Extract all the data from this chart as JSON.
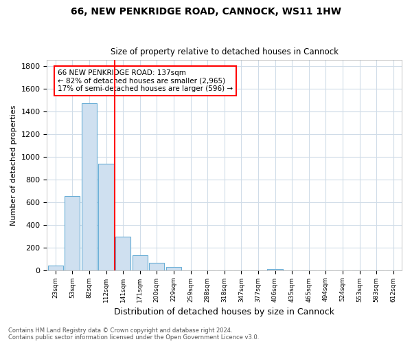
{
  "title1": "66, NEW PENKRIDGE ROAD, CANNOCK, WS11 1HW",
  "title2": "Size of property relative to detached houses in Cannock",
  "xlabel": "Distribution of detached houses by size in Cannock",
  "ylabel": "Number of detached properties",
  "bins": [
    "23sqm",
    "53sqm",
    "82sqm",
    "112sqm",
    "141sqm",
    "171sqm",
    "200sqm",
    "229sqm",
    "259sqm",
    "288sqm",
    "318sqm",
    "347sqm",
    "377sqm",
    "406sqm",
    "435sqm",
    "465sqm",
    "494sqm",
    "524sqm",
    "553sqm",
    "583sqm",
    "612sqm"
  ],
  "values": [
    40,
    650,
    1470,
    935,
    295,
    130,
    65,
    25,
    0,
    0,
    0,
    0,
    0,
    10,
    0,
    0,
    0,
    0,
    0,
    0,
    0
  ],
  "bar_color": "#cfe0f0",
  "bar_edge_color": "#6aaed6",
  "red_line_x": 3.5,
  "annotation_text": "66 NEW PENKRIDGE ROAD: 137sqm\n← 82% of detached houses are smaller (2,965)\n17% of semi-detached houses are larger (596) →",
  "footer_text": "Contains HM Land Registry data © Crown copyright and database right 2024.\nContains public sector information licensed under the Open Government Licence v3.0.",
  "ylim": [
    0,
    1850
  ],
  "background_color": "white",
  "plot_background_color": "white",
  "grid_color": "#d0dce8"
}
